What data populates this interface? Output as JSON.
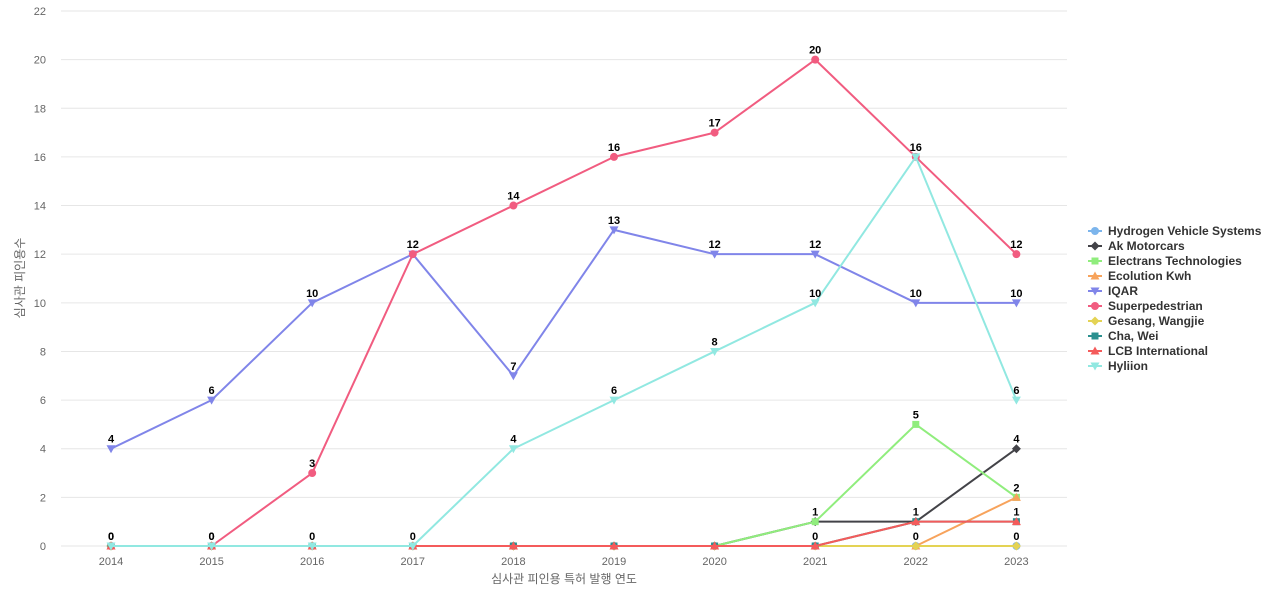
{
  "chart_data": {
    "type": "line",
    "xlabel": "심사관 피인용 특허 발행 연도",
    "ylabel": "심사관 피인용수",
    "x": [
      "2014",
      "2015",
      "2016",
      "2017",
      "2018",
      "2019",
      "2020",
      "2021",
      "2022",
      "2023"
    ],
    "ylim": [
      0,
      22
    ],
    "yticks": [
      0,
      2,
      4,
      6,
      8,
      10,
      12,
      14,
      16,
      18,
      20,
      22
    ],
    "grid": true,
    "legend_position": "right",
    "series": [
      {
        "name": "Hydrogen Vehicle Systems",
        "color": "#7cb5ec",
        "marker": "circle",
        "values": [
          0,
          0,
          0,
          0,
          0,
          0,
          0,
          0,
          0,
          0
        ],
        "labeled": [
          false,
          false,
          false,
          false,
          false,
          false,
          false,
          false,
          false,
          true
        ]
      },
      {
        "name": "Ak Motorcars",
        "color": "#434348",
        "marker": "diamond",
        "values": [
          0,
          0,
          0,
          0,
          0,
          0,
          0,
          1,
          1,
          4
        ],
        "labeled": [
          false,
          false,
          false,
          false,
          false,
          false,
          false,
          false,
          false,
          true
        ]
      },
      {
        "name": "Electrans Technologies",
        "color": "#90ed7d",
        "marker": "square",
        "values": [
          0,
          0,
          0,
          0,
          0,
          0,
          0,
          1,
          5,
          2
        ],
        "labeled": [
          false,
          false,
          false,
          false,
          false,
          false,
          false,
          true,
          true,
          false
        ]
      },
      {
        "name": "Ecolution Kwh",
        "color": "#f7a35c",
        "marker": "triangle",
        "values": [
          0,
          0,
          0,
          0,
          0,
          0,
          0,
          0,
          0,
          2
        ],
        "labeled": [
          false,
          false,
          false,
          false,
          false,
          false,
          false,
          false,
          true,
          true
        ]
      },
      {
        "name": "IQAR",
        "color": "#8085e9",
        "marker": "triangle-down",
        "values": [
          4,
          6,
          10,
          12,
          7,
          13,
          12,
          12,
          10,
          10
        ],
        "labeled": [
          true,
          true,
          true,
          true,
          true,
          true,
          true,
          true,
          true,
          true
        ]
      },
      {
        "name": "Superpedestrian",
        "color": "#f15c80",
        "marker": "circle",
        "values": [
          0,
          0,
          3,
          12,
          14,
          16,
          17,
          20,
          16,
          12
        ],
        "labeled": [
          true,
          true,
          true,
          false,
          true,
          true,
          true,
          true,
          true,
          true
        ]
      },
      {
        "name": "Gesang, Wangjie",
        "color": "#e4d354",
        "marker": "diamond",
        "values": [
          0,
          0,
          0,
          0,
          0,
          0,
          0,
          0,
          0,
          0
        ],
        "labeled": [
          false,
          false,
          false,
          false,
          false,
          false,
          false,
          false,
          false,
          false
        ]
      },
      {
        "name": "Cha, Wei",
        "color": "#2b908f",
        "marker": "square",
        "values": [
          0,
          0,
          0,
          0,
          0,
          0,
          0,
          0,
          1,
          1
        ],
        "labeled": [
          false,
          false,
          false,
          false,
          false,
          false,
          false,
          false,
          false,
          false
        ]
      },
      {
        "name": "LCB International",
        "color": "#f45b5b",
        "marker": "triangle",
        "values": [
          0,
          0,
          0,
          0,
          0,
          0,
          0,
          0,
          1,
          1
        ],
        "labeled": [
          false,
          false,
          false,
          false,
          false,
          false,
          false,
          true,
          true,
          true
        ]
      },
      {
        "name": "Hyliion",
        "color": "#91e8e1",
        "marker": "triangle-down",
        "values": [
          0,
          0,
          0,
          0,
          4,
          6,
          8,
          10,
          16,
          6
        ],
        "labeled": [
          true,
          true,
          true,
          true,
          true,
          true,
          true,
          true,
          false,
          true
        ]
      }
    ]
  }
}
